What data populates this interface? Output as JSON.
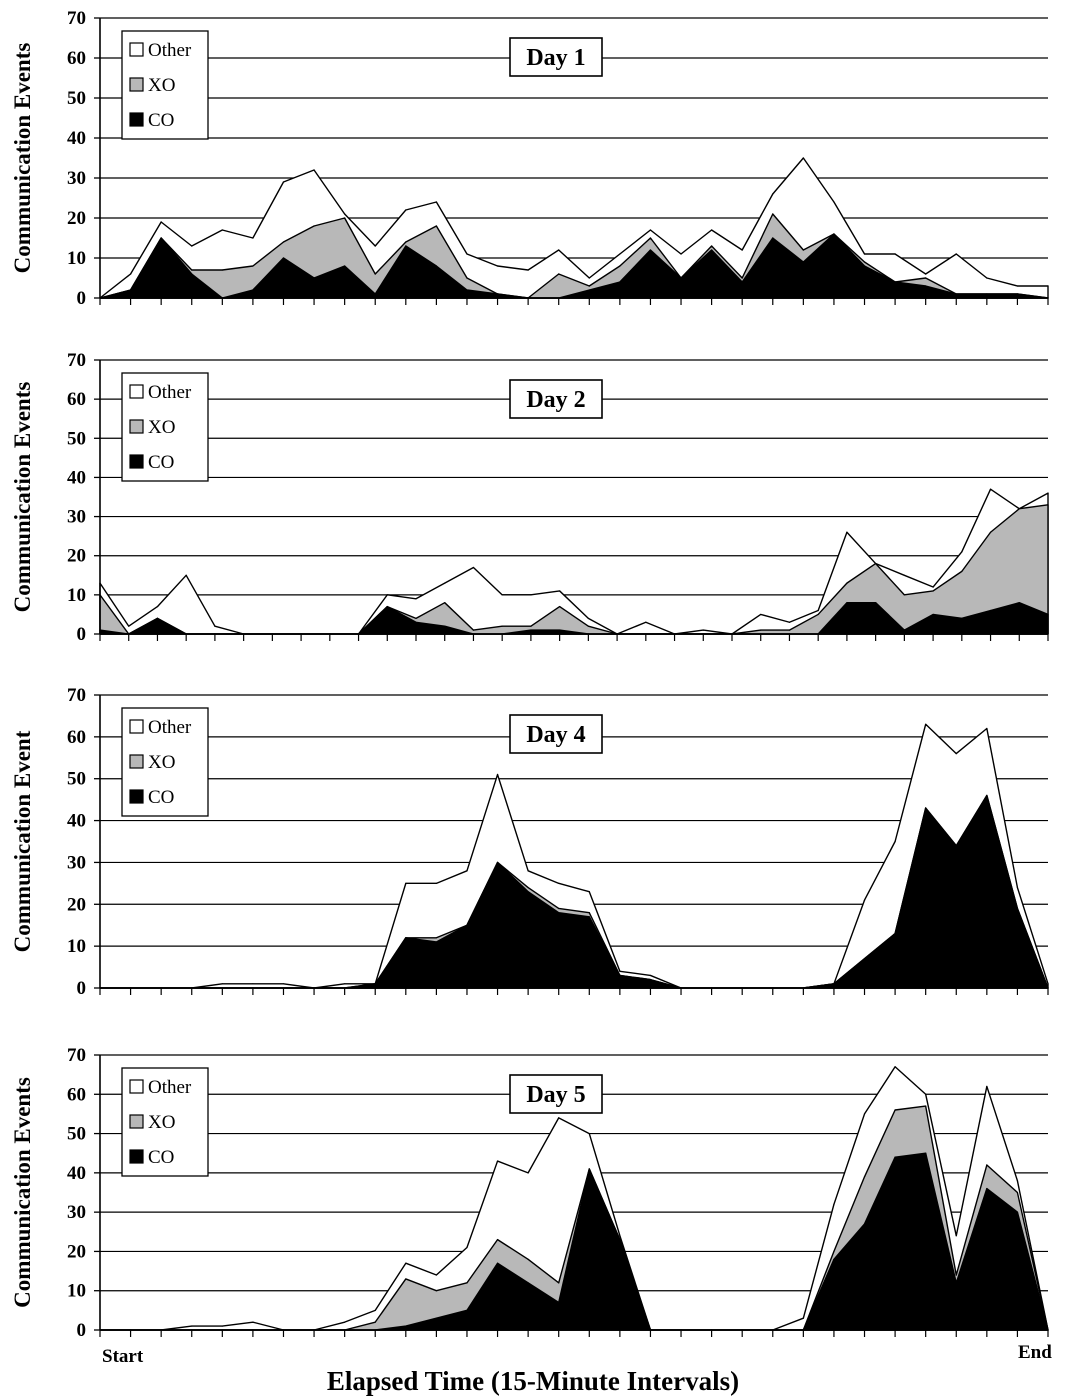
{
  "colors": {
    "other": "#ffffff",
    "xo": "#b8b8b8",
    "co": "#000000"
  },
  "x_axis": {
    "start_label": "Start",
    "end_label": "End",
    "title": "Elapsed Time (15-Minute Intervals)"
  },
  "chart_data": [
    {
      "type": "area",
      "title": "Day 1",
      "ylabel": "Communication Events",
      "ylim": [
        0,
        70
      ],
      "yticks": [
        "0",
        "10",
        "20",
        "30",
        "40",
        "50",
        "60",
        "70"
      ],
      "grid": true,
      "legend_position": "top-left",
      "stacked": true,
      "x_start": "Start",
      "x_end": "End",
      "series": [
        {
          "name": "CO",
          "values": [
            0,
            2,
            15,
            6,
            0,
            2,
            10,
            5,
            8,
            1,
            13,
            8,
            2,
            1,
            0,
            0,
            2,
            4,
            12,
            5,
            12,
            4,
            15,
            9,
            16,
            8,
            4,
            3,
            1,
            1,
            1,
            0
          ]
        },
        {
          "name": "XO",
          "values": [
            0,
            0,
            0,
            1,
            7,
            6,
            4,
            13,
            12,
            5,
            1,
            10,
            3,
            0,
            0,
            6,
            1,
            4,
            3,
            0,
            1,
            1,
            6,
            3,
            0,
            1,
            0,
            2,
            0,
            0,
            0,
            0
          ]
        },
        {
          "name": "Other",
          "values": [
            0,
            4,
            4,
            6,
            10,
            7,
            15,
            14,
            1,
            7,
            8,
            6,
            6,
            7,
            7,
            6,
            2,
            3,
            2,
            6,
            4,
            7,
            5,
            23,
            8,
            2,
            7,
            1,
            10,
            4,
            2,
            3
          ]
        }
      ]
    },
    {
      "type": "area",
      "title": "Day 2",
      "ylabel": "Communication Events",
      "ylim": [
        0,
        70
      ],
      "yticks": [
        "0",
        "10",
        "20",
        "30",
        "40",
        "50",
        "60",
        "70"
      ],
      "grid": true,
      "legend_position": "top-left",
      "stacked": true,
      "x_start": "Start",
      "x_end": "End",
      "series": [
        {
          "name": "CO",
          "values": [
            1,
            0,
            4,
            0,
            0,
            0,
            0,
            0,
            0,
            0,
            7,
            3,
            2,
            0,
            0,
            1,
            1,
            0,
            0,
            0,
            0,
            0,
            0,
            0,
            0,
            0,
            8,
            8,
            1,
            5,
            4,
            6,
            8,
            5
          ]
        },
        {
          "name": "XO",
          "values": [
            9,
            0,
            0,
            0,
            0,
            0,
            0,
            0,
            0,
            0,
            0,
            1,
            6,
            1,
            2,
            1,
            6,
            2,
            0,
            0,
            0,
            0,
            0,
            1,
            1,
            5,
            5,
            10,
            9,
            6,
            12,
            20,
            24,
            28
          ]
        },
        {
          "name": "Other",
          "values": [
            3,
            2,
            3,
            15,
            2,
            0,
            0,
            0,
            0,
            0,
            3,
            5,
            5,
            16,
            8,
            8,
            4,
            2,
            0,
            3,
            0,
            1,
            0,
            4,
            2,
            1,
            13,
            0,
            5,
            1,
            5,
            11,
            0,
            3
          ]
        }
      ]
    },
    {
      "type": "area",
      "title": "Day 4",
      "ylabel": "Communication Event",
      "ylim": [
        0,
        70
      ],
      "yticks": [
        "0",
        "10",
        "20",
        "30",
        "40",
        "50",
        "60",
        "70"
      ],
      "grid": true,
      "legend_position": "top-left",
      "stacked": true,
      "x_start": "Start",
      "x_end": "End",
      "series": [
        {
          "name": "CO",
          "values": [
            0,
            0,
            0,
            0,
            0,
            0,
            0,
            0,
            0,
            1,
            12,
            11,
            15,
            30,
            23,
            18,
            17,
            3,
            2,
            0,
            0,
            0,
            0,
            0,
            1,
            7,
            13,
            43,
            34,
            46,
            19,
            0
          ]
        },
        {
          "name": "XO",
          "values": [
            0,
            0,
            0,
            0,
            0,
            0,
            0,
            0,
            0,
            0,
            0,
            1,
            0,
            0,
            1,
            1,
            1,
            0,
            0,
            0,
            0,
            0,
            0,
            0,
            0,
            0,
            0,
            0,
            0,
            0,
            0,
            0
          ]
        },
        {
          "name": "Other",
          "values": [
            0,
            0,
            0,
            0,
            1,
            1,
            1,
            0,
            1,
            0,
            13,
            13,
            13,
            21,
            4,
            6,
            5,
            1,
            1,
            0,
            0,
            0,
            0,
            0,
            0,
            14,
            22,
            20,
            22,
            16,
            5,
            1
          ]
        }
      ]
    },
    {
      "type": "area",
      "title": "Day 5",
      "ylabel": "Communication Events",
      "ylim": [
        0,
        70
      ],
      "yticks": [
        "0",
        "10",
        "20",
        "30",
        "40",
        "50",
        "60",
        "70"
      ],
      "grid": true,
      "legend_position": "top-left",
      "stacked": true,
      "x_start": "Start",
      "x_end": "End",
      "series": [
        {
          "name": "CO",
          "values": [
            0,
            0,
            0,
            0,
            0,
            0,
            0,
            0,
            0,
            0,
            1,
            3,
            5,
            17,
            12,
            7,
            41,
            23,
            0,
            0,
            0,
            0,
            0,
            0,
            18,
            27,
            44,
            45,
            12,
            36,
            30,
            0
          ]
        },
        {
          "name": "XO",
          "values": [
            0,
            0,
            0,
            0,
            0,
            0,
            0,
            0,
            0,
            2,
            12,
            7,
            7,
            6,
            6,
            5,
            0,
            0,
            0,
            0,
            0,
            0,
            0,
            0,
            2,
            12,
            12,
            12,
            2,
            6,
            5,
            0
          ]
        },
        {
          "name": "Other",
          "values": [
            0,
            0,
            0,
            1,
            1,
            2,
            0,
            0,
            2,
            3,
            4,
            4,
            9,
            20,
            22,
            42,
            9,
            1,
            0,
            0,
            0,
            0,
            0,
            3,
            12,
            16,
            11,
            3,
            10,
            20,
            3,
            0
          ]
        }
      ]
    }
  ]
}
